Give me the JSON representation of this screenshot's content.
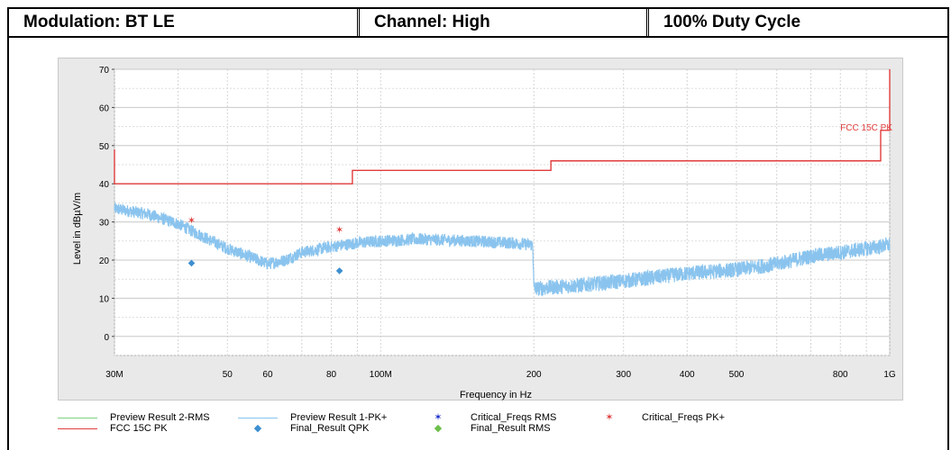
{
  "header": {
    "modulation": "Modulation: BT LE",
    "channel": "Channel: High",
    "duty": "100% Duty Cycle"
  },
  "chart_data": {
    "type": "line",
    "xscale": "log",
    "xlabel": "Frequency in Hz",
    "ylabel": "Level in dBµV/m",
    "xlim": [
      30000000,
      1000000000
    ],
    "ylim": [
      -5,
      70
    ],
    "xticks": [
      {
        "v": 30000000,
        "label": "30M"
      },
      {
        "v": 50000000,
        "label": "50"
      },
      {
        "v": 60000000,
        "label": "60"
      },
      {
        "v": 80000000,
        "label": "80"
      },
      {
        "v": 100000000,
        "label": "100M"
      },
      {
        "v": 200000000,
        "label": "200"
      },
      {
        "v": 300000000,
        "label": "300"
      },
      {
        "v": 400000000,
        "label": "400"
      },
      {
        "v": 500000000,
        "label": "500"
      },
      {
        "v": 800000000,
        "label": "800"
      },
      {
        "v": 1000000000,
        "label": "1G"
      }
    ],
    "yticks": [
      0,
      10,
      20,
      30,
      40,
      50,
      60,
      70
    ],
    "grid": true,
    "limit_line": {
      "name": "FCC 15C PK",
      "label": "FCC 15C PK",
      "color": "#e03c3c",
      "points": [
        [
          30000000,
          49
        ],
        [
          30000000,
          40
        ],
        [
          88000000,
          40
        ],
        [
          88000000,
          43.5
        ],
        [
          216000000,
          43.5
        ],
        [
          216000000,
          46
        ],
        [
          960000000,
          46
        ],
        [
          960000000,
          54
        ],
        [
          1000000000,
          54
        ],
        [
          1000000000,
          70
        ]
      ]
    },
    "series": [
      {
        "name": "Preview Result 1-PK+",
        "color": "#8ac4ee",
        "points": [
          [
            30000000,
            33.5
          ],
          [
            35000000,
            32
          ],
          [
            40000000,
            29.5
          ],
          [
            45000000,
            26
          ],
          [
            50000000,
            23
          ],
          [
            55000000,
            21
          ],
          [
            60000000,
            19
          ],
          [
            65000000,
            20
          ],
          [
            70000000,
            22
          ],
          [
            80000000,
            23.5
          ],
          [
            90000000,
            24.5
          ],
          [
            100000000,
            25
          ],
          [
            120000000,
            25.5
          ],
          [
            150000000,
            25
          ],
          [
            180000000,
            24.5
          ],
          [
            199000000,
            24
          ],
          [
            200000000,
            12.5
          ],
          [
            250000000,
            13.5
          ],
          [
            300000000,
            14.5
          ],
          [
            400000000,
            16.5
          ],
          [
            500000000,
            17.5
          ],
          [
            600000000,
            19
          ],
          [
            700000000,
            21
          ],
          [
            800000000,
            22
          ],
          [
            900000000,
            23
          ],
          [
            1000000000,
            24
          ]
        ]
      }
    ],
    "markers": [
      {
        "name": "Critical_Freqs PK+",
        "color": "#e03c3c",
        "symbol": "✶",
        "points": [
          [
            42500000,
            30.5
          ],
          [
            83000000,
            28
          ]
        ]
      },
      {
        "name": "Final_Result QPK",
        "color": "#3d8fd0",
        "symbol": "◆",
        "points": [
          [
            42500000,
            19.5
          ],
          [
            83000000,
            17.5
          ]
        ]
      }
    ],
    "legend": {
      "placement": "bottom",
      "entries": [
        {
          "label": "Preview Result 2-RMS",
          "color": "#7fd07f",
          "kind": "line"
        },
        {
          "label": "Preview Result 1-PK+",
          "color": "#8ac4ee",
          "kind": "line"
        },
        {
          "label": "Critical_Freqs RMS",
          "color": "#1a2fd0",
          "kind": "mark",
          "symbol": "✶"
        },
        {
          "label": "Critical_Freqs PK+",
          "color": "#e03c3c",
          "kind": "mark",
          "symbol": "✶"
        },
        {
          "label": "FCC 15C PK",
          "color": "#e03c3c",
          "kind": "line"
        },
        {
          "label": "Final_Result QPK",
          "color": "#3d8fd0",
          "kind": "mark",
          "symbol": "◆"
        },
        {
          "label": "Final_Result RMS",
          "color": "#6cc04a",
          "kind": "mark",
          "symbol": "◆"
        }
      ]
    }
  }
}
